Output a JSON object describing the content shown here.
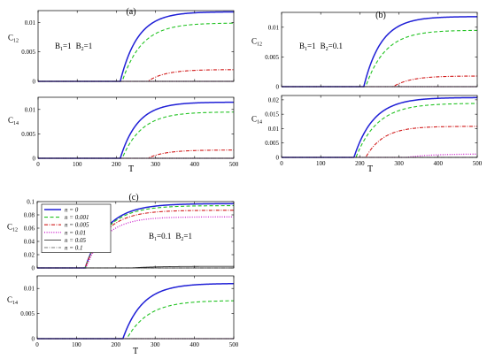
{
  "colors": {
    "n0": "#1f1fd6",
    "n0001": "#22c322",
    "n0005": "#d11a1a",
    "n001": "#cc22cc",
    "n005": "#3a3a3a",
    "n01": "#7a7a7a"
  },
  "legend": {
    "placement": "top-left",
    "entries": [
      {
        "id": "n0",
        "label": "n = 0",
        "style": "solid"
      },
      {
        "id": "n0001",
        "label": "n = 0.001",
        "style": "dashed"
      },
      {
        "id": "n0005",
        "label": "n = 0.005",
        "style": "dashdot"
      },
      {
        "id": "n001",
        "label": "n = 0.01",
        "style": "dotted"
      },
      {
        "id": "n005",
        "label": "n = 0.05",
        "style": "solid"
      },
      {
        "id": "n01",
        "label": "n = 0.1",
        "style": "dashdot"
      }
    ]
  },
  "panels": [
    {
      "id": "a",
      "tag": "(a)",
      "params": {
        "b1": "1",
        "b2": "1"
      },
      "xlabel": "T"
    },
    {
      "id": "b",
      "tag": "(b)",
      "params": {
        "b1": "1",
        "b2": "0.1"
      },
      "xlabel": "T"
    },
    {
      "id": "c",
      "tag": "(c)",
      "params": {
        "b1": "0.1",
        "b2": "1"
      },
      "xlabel": "T"
    }
  ],
  "chart_data": [
    {
      "type": "line",
      "panel": "a",
      "ylabel": "C12",
      "xlabel": "",
      "xlim": [
        0,
        500
      ],
      "ylim": [
        0,
        0.012
      ],
      "grid": false,
      "xticks": [
        "0",
        "100",
        "200",
        "300",
        "400",
        "500"
      ],
      "yticks": [
        "0",
        "0.005",
        "0.01"
      ],
      "ytick_values": [
        0,
        0.005,
        0.01
      ],
      "show_xticklabels": false,
      "series": [
        {
          "id": "n0",
          "onset": 210,
          "plateau": 0.0118,
          "tau": 45
        },
        {
          "id": "n0001",
          "onset": 215,
          "plateau": 0.0099,
          "tau": 50
        },
        {
          "id": "n0005",
          "onset": 280,
          "plateau": 0.002,
          "tau": 45
        },
        {
          "id": "n001",
          "onset": 500,
          "plateau": 0,
          "tau": 50
        },
        {
          "id": "n005",
          "onset": 500,
          "plateau": 0,
          "tau": 50
        },
        {
          "id": "n01",
          "onset": 500,
          "plateau": 0,
          "tau": 50
        }
      ]
    },
    {
      "type": "line",
      "panel": "a",
      "ylabel": "C14",
      "xlabel": "T",
      "xlim": [
        0,
        500
      ],
      "ylim": [
        0,
        0.0125
      ],
      "grid": false,
      "xticks": [
        "0",
        "100",
        "200",
        "300",
        "400",
        "500"
      ],
      "yticks": [
        "0",
        "0.005",
        "0.01"
      ],
      "ytick_values": [
        0,
        0.005,
        0.01
      ],
      "show_xticklabels": true,
      "series": [
        {
          "id": "n0",
          "onset": 210,
          "plateau": 0.0115,
          "tau": 45
        },
        {
          "id": "n0001",
          "onset": 215,
          "plateau": 0.0095,
          "tau": 50
        },
        {
          "id": "n0005",
          "onset": 280,
          "plateau": 0.0017,
          "tau": 45
        },
        {
          "id": "n001",
          "onset": 500,
          "plateau": 0,
          "tau": 50
        },
        {
          "id": "n005",
          "onset": 500,
          "plateau": 0,
          "tau": 50
        },
        {
          "id": "n01",
          "onset": 500,
          "plateau": 0,
          "tau": 50
        }
      ]
    },
    {
      "type": "line",
      "panel": "b",
      "ylabel": "C12",
      "xlabel": "",
      "xlim": [
        0,
        500
      ],
      "ylim": [
        0,
        0.0125
      ],
      "grid": false,
      "xticks": [
        "0",
        "100",
        "200",
        "300",
        "400",
        "500"
      ],
      "yticks": [
        "0",
        "0.005",
        "0.01"
      ],
      "ytick_values": [
        0,
        0.005,
        0.01
      ],
      "show_xticklabels": false,
      "series": [
        {
          "id": "n0",
          "onset": 210,
          "plateau": 0.0118,
          "tau": 45
        },
        {
          "id": "n0001",
          "onset": 215,
          "plateau": 0.0095,
          "tau": 50
        },
        {
          "id": "n0005",
          "onset": 285,
          "plateau": 0.0018,
          "tau": 45
        },
        {
          "id": "n001",
          "onset": 500,
          "plateau": 0,
          "tau": 50
        },
        {
          "id": "n005",
          "onset": 500,
          "plateau": 0,
          "tau": 50
        },
        {
          "id": "n01",
          "onset": 500,
          "plateau": 0,
          "tau": 50
        }
      ]
    },
    {
      "type": "line",
      "panel": "b",
      "ylabel": "C14",
      "xlabel": "T",
      "xlim": [
        0,
        500
      ],
      "ylim": [
        0,
        0.0215
      ],
      "grid": false,
      "xticks": [
        "0",
        "100",
        "200",
        "300",
        "400",
        "500"
      ],
      "yticks": [
        "0",
        "0.005",
        "0.01",
        "0.015",
        "0.02"
      ],
      "ytick_values": [
        0,
        0.005,
        0.01,
        0.015,
        0.02
      ],
      "show_xticklabels": true,
      "series": [
        {
          "id": "n0",
          "onset": 185,
          "plateau": 0.0208,
          "tau": 50
        },
        {
          "id": "n0001",
          "onset": 190,
          "plateau": 0.0188,
          "tau": 55
        },
        {
          "id": "n0005",
          "onset": 215,
          "plateau": 0.0108,
          "tau": 45
        },
        {
          "id": "n001",
          "onset": 320,
          "plateau": 0.0012,
          "tau": 60
        },
        {
          "id": "n005",
          "onset": 500,
          "plateau": 0,
          "tau": 50
        },
        {
          "id": "n01",
          "onset": 500,
          "plateau": 0,
          "tau": 50
        }
      ]
    },
    {
      "type": "line",
      "panel": "c",
      "ylabel": "C12",
      "xlabel": "",
      "xlim": [
        0,
        500
      ],
      "ylim": [
        0,
        0.1
      ],
      "grid": false,
      "xticks": [
        "0",
        "100",
        "200",
        "300",
        "400",
        "500"
      ],
      "yticks": [
        "0",
        "0.02",
        "0.04",
        "0.06",
        "0.08",
        "0.1"
      ],
      "ytick_values": [
        0,
        0.02,
        0.04,
        0.06,
        0.08,
        0.1
      ],
      "show_xticklabels": false,
      "series": [
        {
          "id": "n0",
          "onset": 122,
          "plateau": 0.097,
          "tau": 55
        },
        {
          "id": "n0001",
          "onset": 122,
          "plateau": 0.094,
          "tau": 55
        },
        {
          "id": "n0005",
          "onset": 122,
          "plateau": 0.087,
          "tau": 52
        },
        {
          "id": "n001",
          "onset": 124,
          "plateau": 0.077,
          "tau": 50
        },
        {
          "id": "n005",
          "onset": 240,
          "plateau": 0.0025,
          "tau": 60
        },
        {
          "id": "n01",
          "onset": 500,
          "plateau": 0,
          "tau": 50
        }
      ]
    },
    {
      "type": "line",
      "panel": "c",
      "ylabel": "C14",
      "xlabel": "T",
      "xlim": [
        0,
        500
      ],
      "ylim": [
        0,
        0.0125
      ],
      "grid": false,
      "xticks": [
        "0",
        "100",
        "200",
        "300",
        "400",
        "500"
      ],
      "yticks": [
        "0",
        "0.005",
        "0.01"
      ],
      "ytick_values": [
        0,
        0.005,
        0.01
      ],
      "show_xticklabels": true,
      "series": [
        {
          "id": "n0",
          "onset": 218,
          "plateau": 0.011,
          "tau": 50
        },
        {
          "id": "n0001",
          "onset": 228,
          "plateau": 0.0076,
          "tau": 55
        },
        {
          "id": "n0005",
          "onset": 500,
          "plateau": 0,
          "tau": 50
        },
        {
          "id": "n001",
          "onset": 500,
          "plateau": 0,
          "tau": 50
        },
        {
          "id": "n005",
          "onset": 500,
          "plateau": 0,
          "tau": 50
        },
        {
          "id": "n01",
          "onset": 500,
          "plateau": 0,
          "tau": 50
        }
      ]
    }
  ]
}
